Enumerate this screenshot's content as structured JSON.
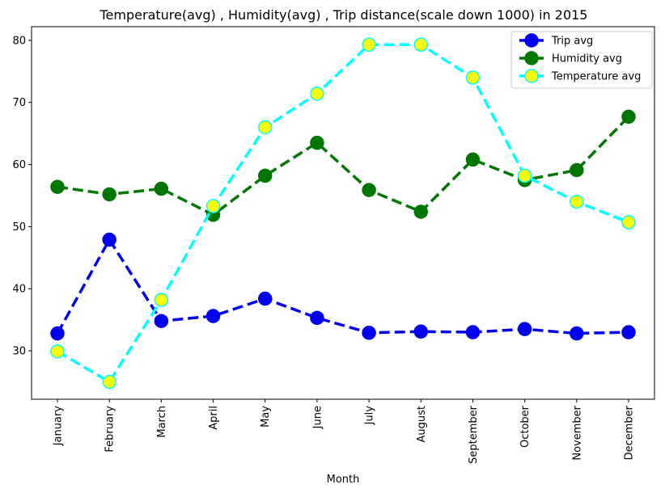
{
  "chart_data": {
    "type": "line",
    "title": "Temperature(avg) , Humidity(avg) , Trip distance(scale down 1000) in 2015",
    "xlabel": "Month",
    "ylabel": "",
    "categories": [
      "January",
      "February",
      "March",
      "April",
      "May",
      "June",
      "July",
      "August",
      "September",
      "October",
      "November",
      "December"
    ],
    "ylim": [
      22.2,
      82.2
    ],
    "yticks": [
      30,
      40,
      50,
      60,
      70,
      80
    ],
    "grid": false,
    "legend_position": "top-right",
    "series": [
      {
        "name": "Trip avg",
        "line_color": "#0000ee",
        "marker_face": "#0000ee",
        "marker_edge": "#0000ee",
        "linestyle": "dashed",
        "values": [
          32.8,
          47.9,
          34.8,
          35.6,
          38.4,
          35.3,
          32.9,
          33.1,
          33.0,
          33.5,
          32.8,
          33.0
        ]
      },
      {
        "name": "Humidity avg",
        "line_color": "#007700",
        "marker_face": "#007700",
        "marker_edge": "#007700",
        "linestyle": "dashed",
        "values": [
          56.4,
          55.2,
          56.1,
          51.9,
          58.2,
          63.5,
          55.9,
          52.4,
          60.8,
          57.5,
          59.1,
          67.7
        ]
      },
      {
        "name": "Temperature avg",
        "line_color": "#00ffff",
        "marker_face": "#ffff00",
        "marker_edge": "#00ffff",
        "linestyle": "dashed",
        "values": [
          29.9,
          25.0,
          38.2,
          53.3,
          66.0,
          71.4,
          79.3,
          79.3,
          74.0,
          58.2,
          54.0,
          50.7
        ]
      }
    ]
  }
}
